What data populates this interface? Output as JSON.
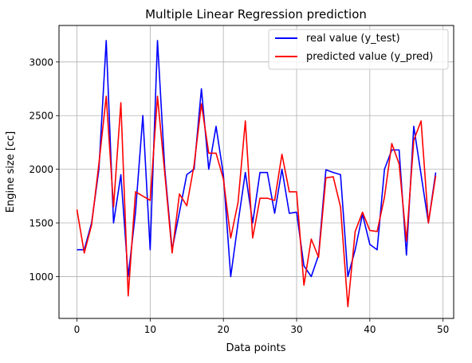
{
  "chart_data": {
    "type": "line",
    "title": "Multiple Linear Regression prediction",
    "xlabel": "Data points",
    "ylabel": "Engine size [cc]",
    "xlim": [
      -2.45,
      51.45
    ],
    "ylim": [
      610,
      3340
    ],
    "xticks": [
      0,
      10,
      20,
      30,
      40,
      50
    ],
    "yticks": [
      1000,
      1500,
      2000,
      2500,
      3000
    ],
    "grid": true,
    "legend": "top-right",
    "x": [
      0,
      1,
      2,
      3,
      4,
      5,
      6,
      7,
      8,
      9,
      10,
      11,
      12,
      13,
      14,
      15,
      16,
      17,
      18,
      19,
      20,
      21,
      22,
      23,
      24,
      25,
      26,
      27,
      28,
      29,
      30,
      31,
      32,
      33,
      34,
      35,
      36,
      37,
      38,
      39,
      40,
      41,
      42,
      43,
      44,
      45,
      46,
      47,
      48,
      49
    ],
    "series": [
      {
        "name": "real value (y_test)",
        "color": "#0000ff",
        "values": [
          1250,
          1250,
          1500,
          2000,
          3200,
          1500,
          1950,
          1000,
          1600,
          2500,
          1250,
          3200,
          2000,
          1250,
          1600,
          1950,
          2000,
          2750,
          2000,
          2400,
          1950,
          1000,
          1500,
          1970,
          1500,
          1970,
          1970,
          1590,
          2000,
          1590,
          1600,
          1100,
          1000,
          1200,
          1995,
          1970,
          1950,
          1000,
          1250,
          1580,
          1300,
          1250,
          2000,
          2180,
          2180,
          1200,
          2400,
          1950,
          1500,
          1970
        ]
      },
      {
        "name": "predicted value (y_pred)",
        "color": "#ff0000",
        "values": [
          1625,
          1220,
          1480,
          2050,
          2680,
          1650,
          2620,
          820,
          1790,
          1750,
          1710,
          2680,
          1960,
          1220,
          1770,
          1660,
          2040,
          2610,
          2150,
          2150,
          1910,
          1360,
          1690,
          2450,
          1360,
          1730,
          1730,
          1710,
          2140,
          1790,
          1790,
          920,
          1350,
          1180,
          1920,
          1930,
          1650,
          720,
          1420,
          1600,
          1430,
          1420,
          1740,
          2240,
          2050,
          1330,
          2270,
          2450,
          1500,
          1940
        ]
      }
    ]
  }
}
